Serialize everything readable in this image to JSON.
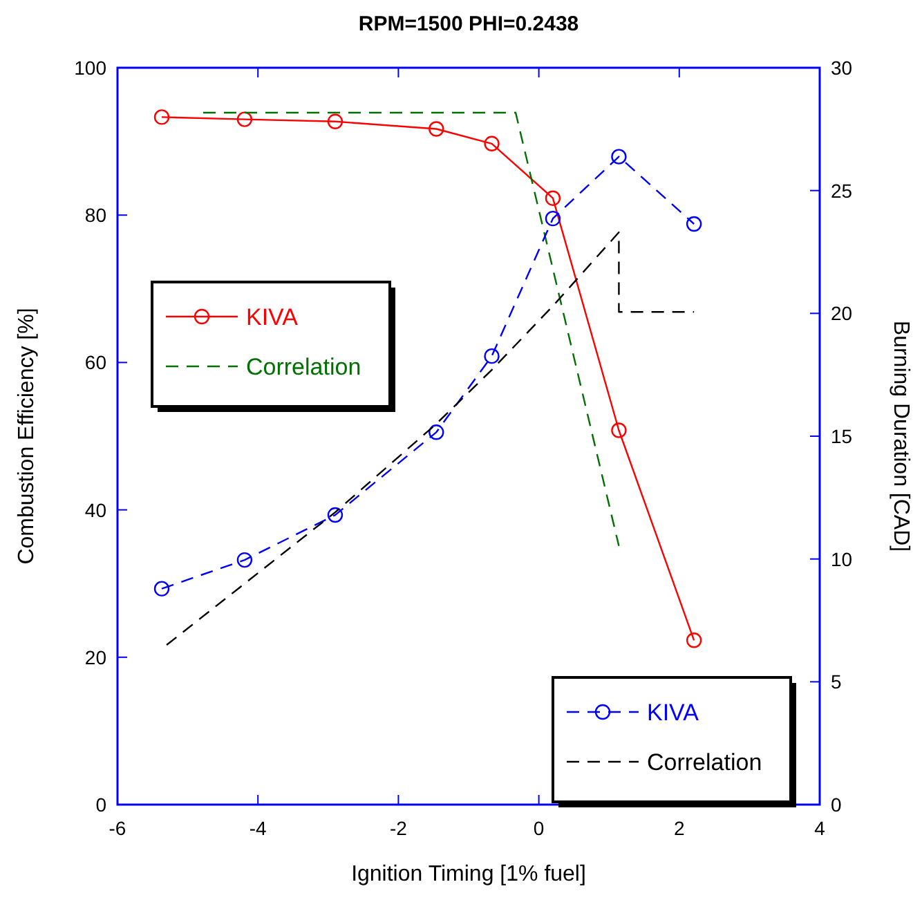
{
  "chart_data": {
    "type": "line",
    "title": "RPM=1500  PHI=0.2438",
    "xlabel": "Ignition Timing [1% fuel]",
    "ylabel": "Combustion Efficiency [%]",
    "y2label": "Burning Duration [CAD]",
    "xlim": [
      -6,
      4
    ],
    "xticks": [
      -6,
      -4,
      -2,
      0,
      2,
      4
    ],
    "ylim": [
      0,
      100
    ],
    "yticks": [
      0,
      20,
      40,
      60,
      80,
      100
    ],
    "y2lim": [
      0,
      30
    ],
    "y2ticks": [
      0,
      5,
      10,
      15,
      20,
      25,
      30
    ],
    "grid": false,
    "legend": "left",
    "series": [
      {
        "name": "KIVA",
        "color": "#ff0000",
        "marker": "circle",
        "line_style": "solid",
        "x": [
          -5.37,
          -4.19,
          -2.9,
          -1.46,
          -0.67,
          0.2,
          1.14,
          2.21
        ],
        "values": [
          93.3,
          93.0,
          92.7,
          91.7,
          89.7,
          82.3,
          50.8,
          22.3
        ]
      },
      {
        "name": "Correlation",
        "color": "#007000",
        "marker": "none",
        "line_style": "dashed",
        "x": [
          -4.78,
          -0.33,
          1.14
        ],
        "values": [
          93.9,
          93.9,
          35.1
        ]
      },
      {
        "name": "KIVA",
        "color": "#0000ff",
        "marker": "circle",
        "line_style": "dashed",
        "axis": "y2",
        "x": [
          -5.37,
          -4.19,
          -2.9,
          -1.46,
          -0.67,
          0.2,
          1.14,
          2.21
        ],
        "values": [
          8.79,
          9.96,
          11.79,
          15.16,
          18.26,
          23.86,
          26.38,
          23.64
        ]
      },
      {
        "name": "Correlation",
        "color": "#000000",
        "marker": "none",
        "line_style": "dashed",
        "axis": "y2",
        "x": [
          -5.3,
          -2.9,
          -1.46,
          -0.67,
          0.2,
          1.14,
          1.14,
          2.21
        ],
        "values": [
          6.5,
          11.9,
          15.5,
          17.7,
          20.3,
          23.3,
          20.06,
          20.06
        ]
      }
    ]
  }
}
